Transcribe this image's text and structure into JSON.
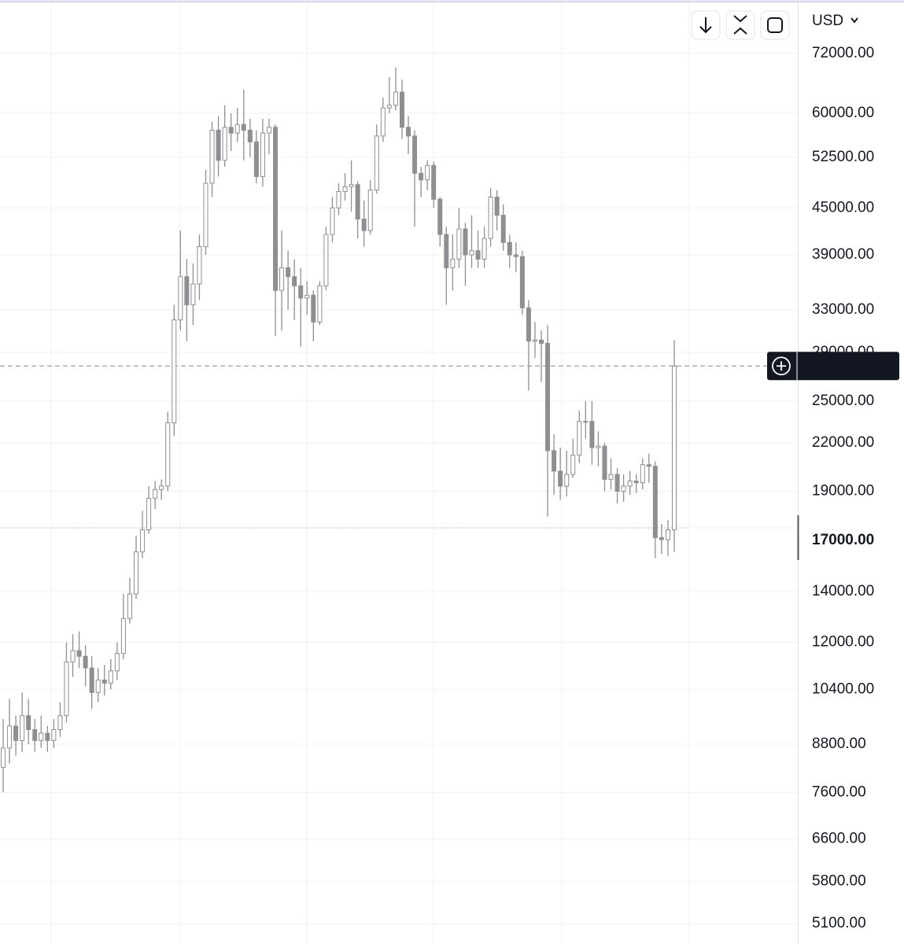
{
  "chart_data": {
    "type": "candlestick",
    "currency": "USD",
    "scale": "log",
    "grid": true,
    "color": "#8e8e93",
    "up_color": "#ffffff",
    "down_color": "#8e8e93",
    "ylim": [
      4792,
      84700
    ],
    "yticks": [
      {
        "value": 72000,
        "label": "72000.00"
      },
      {
        "value": 60000,
        "label": "60000.00"
      },
      {
        "value": 52500,
        "label": "52500.00"
      },
      {
        "value": 45000,
        "label": "45000.00"
      },
      {
        "value": 39000,
        "label": "39000.00"
      },
      {
        "value": 33000,
        "label": "33000.00"
      },
      {
        "value": 29000,
        "label": "29000.00"
      },
      {
        "value": 25000,
        "label": "25000.00"
      },
      {
        "value": 22000,
        "label": "22000.00"
      },
      {
        "value": 19000,
        "label": "19000.00"
      },
      {
        "value": 17000,
        "label": "17000.00"
      },
      {
        "value": 14000,
        "label": "14000.00"
      },
      {
        "value": 12000,
        "label": "12000.00"
      },
      {
        "value": 10400,
        "label": "10400.00"
      },
      {
        "value": 8800,
        "label": "8800.00"
      },
      {
        "value": 7600,
        "label": "7600.00"
      },
      {
        "value": 6600,
        "label": "6600.00"
      },
      {
        "value": 5800,
        "label": "5800.00"
      },
      {
        "value": 5100,
        "label": "5100.00"
      }
    ],
    "crosshair": 17000,
    "last_price": 27815.81,
    "open": [
      8200,
      8700,
      9300,
      8900,
      9600,
      9200,
      8900,
      9100,
      8900,
      9200,
      9600,
      11300,
      11700,
      11500,
      11100,
      10300,
      10700,
      10600,
      11000,
      11600,
      12900,
      13900,
      15800,
      16900,
      18600,
      19100,
      19300,
      23400,
      32000,
      36500,
      33500,
      35700,
      40000,
      48500,
      57000,
      52000,
      57500,
      56500,
      58000,
      57000,
      55000,
      49500,
      56500,
      57500,
      35000,
      37500,
      36500,
      35500,
      34200,
      34500,
      31800,
      35500,
      41500,
      45000,
      47300,
      48000,
      48300,
      43500,
      42000,
      47500,
      56000,
      61000,
      61500,
      64000,
      57500,
      56000,
      50000,
      49000,
      51200,
      46200,
      41500,
      37500,
      38500,
      42200,
      39000,
      39500,
      38500,
      41000,
      46500,
      44000,
      40500,
      39000,
      38800,
      33200,
      30000,
      30100,
      29800,
      21500,
      20200,
      19300,
      20000,
      21200,
      23500,
      23500,
      21700,
      21800,
      19700,
      20000,
      19000,
      19300,
      19600,
      19500,
      20600,
      20500,
      16500,
      16400,
      16900
    ],
    "high": [
      9500,
      10100,
      9600,
      10300,
      10100,
      9500,
      9600,
      9300,
      9500,
      10000,
      12000,
      12300,
      12400,
      11900,
      11500,
      11100,
      11200,
      11400,
      12000,
      13900,
      14600,
      16600,
      17900,
      19300,
      19600,
      19700,
      24200,
      33500,
      42000,
      38500,
      38000,
      41500,
      50500,
      58500,
      59500,
      61500,
      60000,
      61000,
      64500,
      59000,
      57000,
      59000,
      59000,
      58000,
      42000,
      39500,
      38500,
      37500,
      36000,
      35000,
      36000,
      42500,
      46500,
      48500,
      50000,
      52000,
      48800,
      46000,
      49000,
      58000,
      63000,
      67000,
      69000,
      66500,
      59500,
      57000,
      51000,
      52000,
      51800,
      46500,
      42500,
      41500,
      45000,
      43000,
      44000,
      42000,
      42500,
      47800,
      47500,
      45500,
      41500,
      40500,
      39500,
      34000,
      31800,
      31000,
      31500,
      22600,
      21700,
      21500,
      22300,
      24300,
      25000,
      25000,
      22800,
      22000,
      21000,
      20400,
      20000,
      20200,
      20000,
      21000,
      21300,
      20800,
      17200,
      17400,
      30100
    ],
    "low": [
      7600,
      8300,
      8500,
      8600,
      8800,
      8600,
      8700,
      8600,
      8700,
      9000,
      9400,
      10800,
      11100,
      10500,
      9800,
      10000,
      10200,
      10400,
      10700,
      11400,
      12700,
      13700,
      15500,
      16700,
      18000,
      18500,
      19000,
      22500,
      31000,
      30000,
      31500,
      34000,
      39000,
      46500,
      49500,
      51000,
      53500,
      55000,
      52000,
      52500,
      48500,
      48000,
      53000,
      30500,
      31000,
      33000,
      32000,
      29500,
      32500,
      30000,
      31500,
      35000,
      40500,
      44000,
      46000,
      44500,
      41000,
      40000,
      41500,
      47000,
      55000,
      60000,
      60500,
      55500,
      53000,
      42500,
      46500,
      47500,
      45000,
      40000,
      33500,
      35000,
      37500,
      35500,
      37500,
      37500,
      37500,
      40000,
      42000,
      39500,
      37500,
      37000,
      32500,
      25800,
      28500,
      26500,
      17600,
      18800,
      18500,
      18700,
      19800,
      20700,
      22300,
      20600,
      20500,
      19000,
      19100,
      18300,
      18400,
      18800,
      18900,
      19100,
      19500,
      15500,
      15700,
      15600,
      15800
    ],
    "close": [
      8700,
      9300,
      8900,
      9600,
      9200,
      8900,
      9100,
      8900,
      9200,
      9600,
      11300,
      11700,
      11500,
      11100,
      10300,
      10700,
      10600,
      11000,
      11600,
      12900,
      13900,
      15800,
      16900,
      18600,
      19100,
      19300,
      23400,
      32000,
      36500,
      33500,
      35700,
      40000,
      48500,
      57000,
      52000,
      57500,
      56500,
      58000,
      57000,
      55000,
      49500,
      56500,
      57500,
      35000,
      37500,
      36500,
      35500,
      34200,
      34500,
      31800,
      35500,
      41500,
      45000,
      47300,
      48000,
      48300,
      43500,
      42000,
      47500,
      56000,
      61000,
      61500,
      64000,
      57500,
      56000,
      50000,
      49000,
      51200,
      46200,
      41500,
      37500,
      38500,
      42200,
      39000,
      39500,
      38500,
      41000,
      46500,
      44000,
      40500,
      39000,
      38800,
      33200,
      30000,
      30100,
      29800,
      21500,
      20200,
      19300,
      20000,
      21200,
      23500,
      23500,
      21700,
      21800,
      19700,
      20000,
      19000,
      19300,
      19600,
      19500,
      20600,
      20500,
      16500,
      16400,
      16900,
      27815.81
    ]
  }
}
